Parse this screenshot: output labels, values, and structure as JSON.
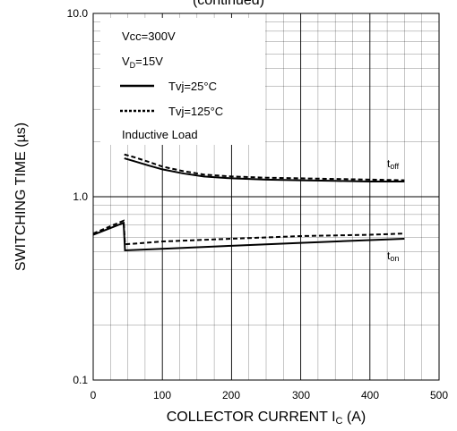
{
  "chart_data": {
    "type": "line",
    "title": "(continued)",
    "xlabel": {
      "main": "COLLECTOR CURRENT I",
      "sub": "C",
      "unit": " (A)"
    },
    "ylabel": "SWITCHING TIME (µs)",
    "xlim": [
      0,
      500
    ],
    "ylim": [
      0.1,
      10.0
    ],
    "y_scale": "log",
    "grid": true,
    "x_ticks": [
      "0",
      "100",
      "200",
      "300",
      "400",
      "500"
    ],
    "y_ticks": [
      "0.1",
      "1.0",
      "10.0"
    ],
    "legend": {
      "placement": "top-left",
      "lines": [
        {
          "main": "Vcc=300V",
          "sub": "",
          "rest": ""
        },
        {
          "main": "V",
          "sub": "D",
          "rest": "=15V"
        }
      ],
      "entries": [
        {
          "label": "Tvj=25°C",
          "style": "solid"
        },
        {
          "label": "Tvj=125°C",
          "style": "dashed"
        }
      ],
      "note": "Inductive Load"
    },
    "series_labels": {
      "toff": {
        "main": "t",
        "sub": "off"
      },
      "ton": {
        "main": "t",
        "sub": "on"
      }
    },
    "series": [
      {
        "name": "toff Tvj=25°C",
        "style": "solid",
        "x": [
          45,
          60,
          80,
          100,
          130,
          160,
          200,
          250,
          300,
          350,
          400,
          450
        ],
        "y": [
          1.62,
          1.56,
          1.48,
          1.41,
          1.34,
          1.29,
          1.26,
          1.24,
          1.23,
          1.22,
          1.21,
          1.21
        ]
      },
      {
        "name": "toff Tvj=125°C",
        "style": "dashed",
        "x": [
          45,
          60,
          80,
          100,
          130,
          160,
          200,
          250,
          300,
          350,
          400,
          450
        ],
        "y": [
          1.7,
          1.64,
          1.55,
          1.46,
          1.38,
          1.32,
          1.29,
          1.27,
          1.26,
          1.25,
          1.24,
          1.23
        ]
      },
      {
        "name": "ton Tvj=25°C",
        "style": "solid",
        "x": [
          0,
          44,
          46,
          100,
          200,
          300,
          400,
          450
        ],
        "y": [
          0.62,
          0.72,
          0.51,
          0.52,
          0.54,
          0.56,
          0.58,
          0.59
        ]
      },
      {
        "name": "ton Tvj=125°C",
        "style": "dashed",
        "x": [
          0,
          44,
          46,
          100,
          200,
          300,
          400,
          450
        ],
        "y": [
          0.63,
          0.74,
          0.55,
          0.57,
          0.59,
          0.61,
          0.62,
          0.63
        ]
      }
    ]
  }
}
